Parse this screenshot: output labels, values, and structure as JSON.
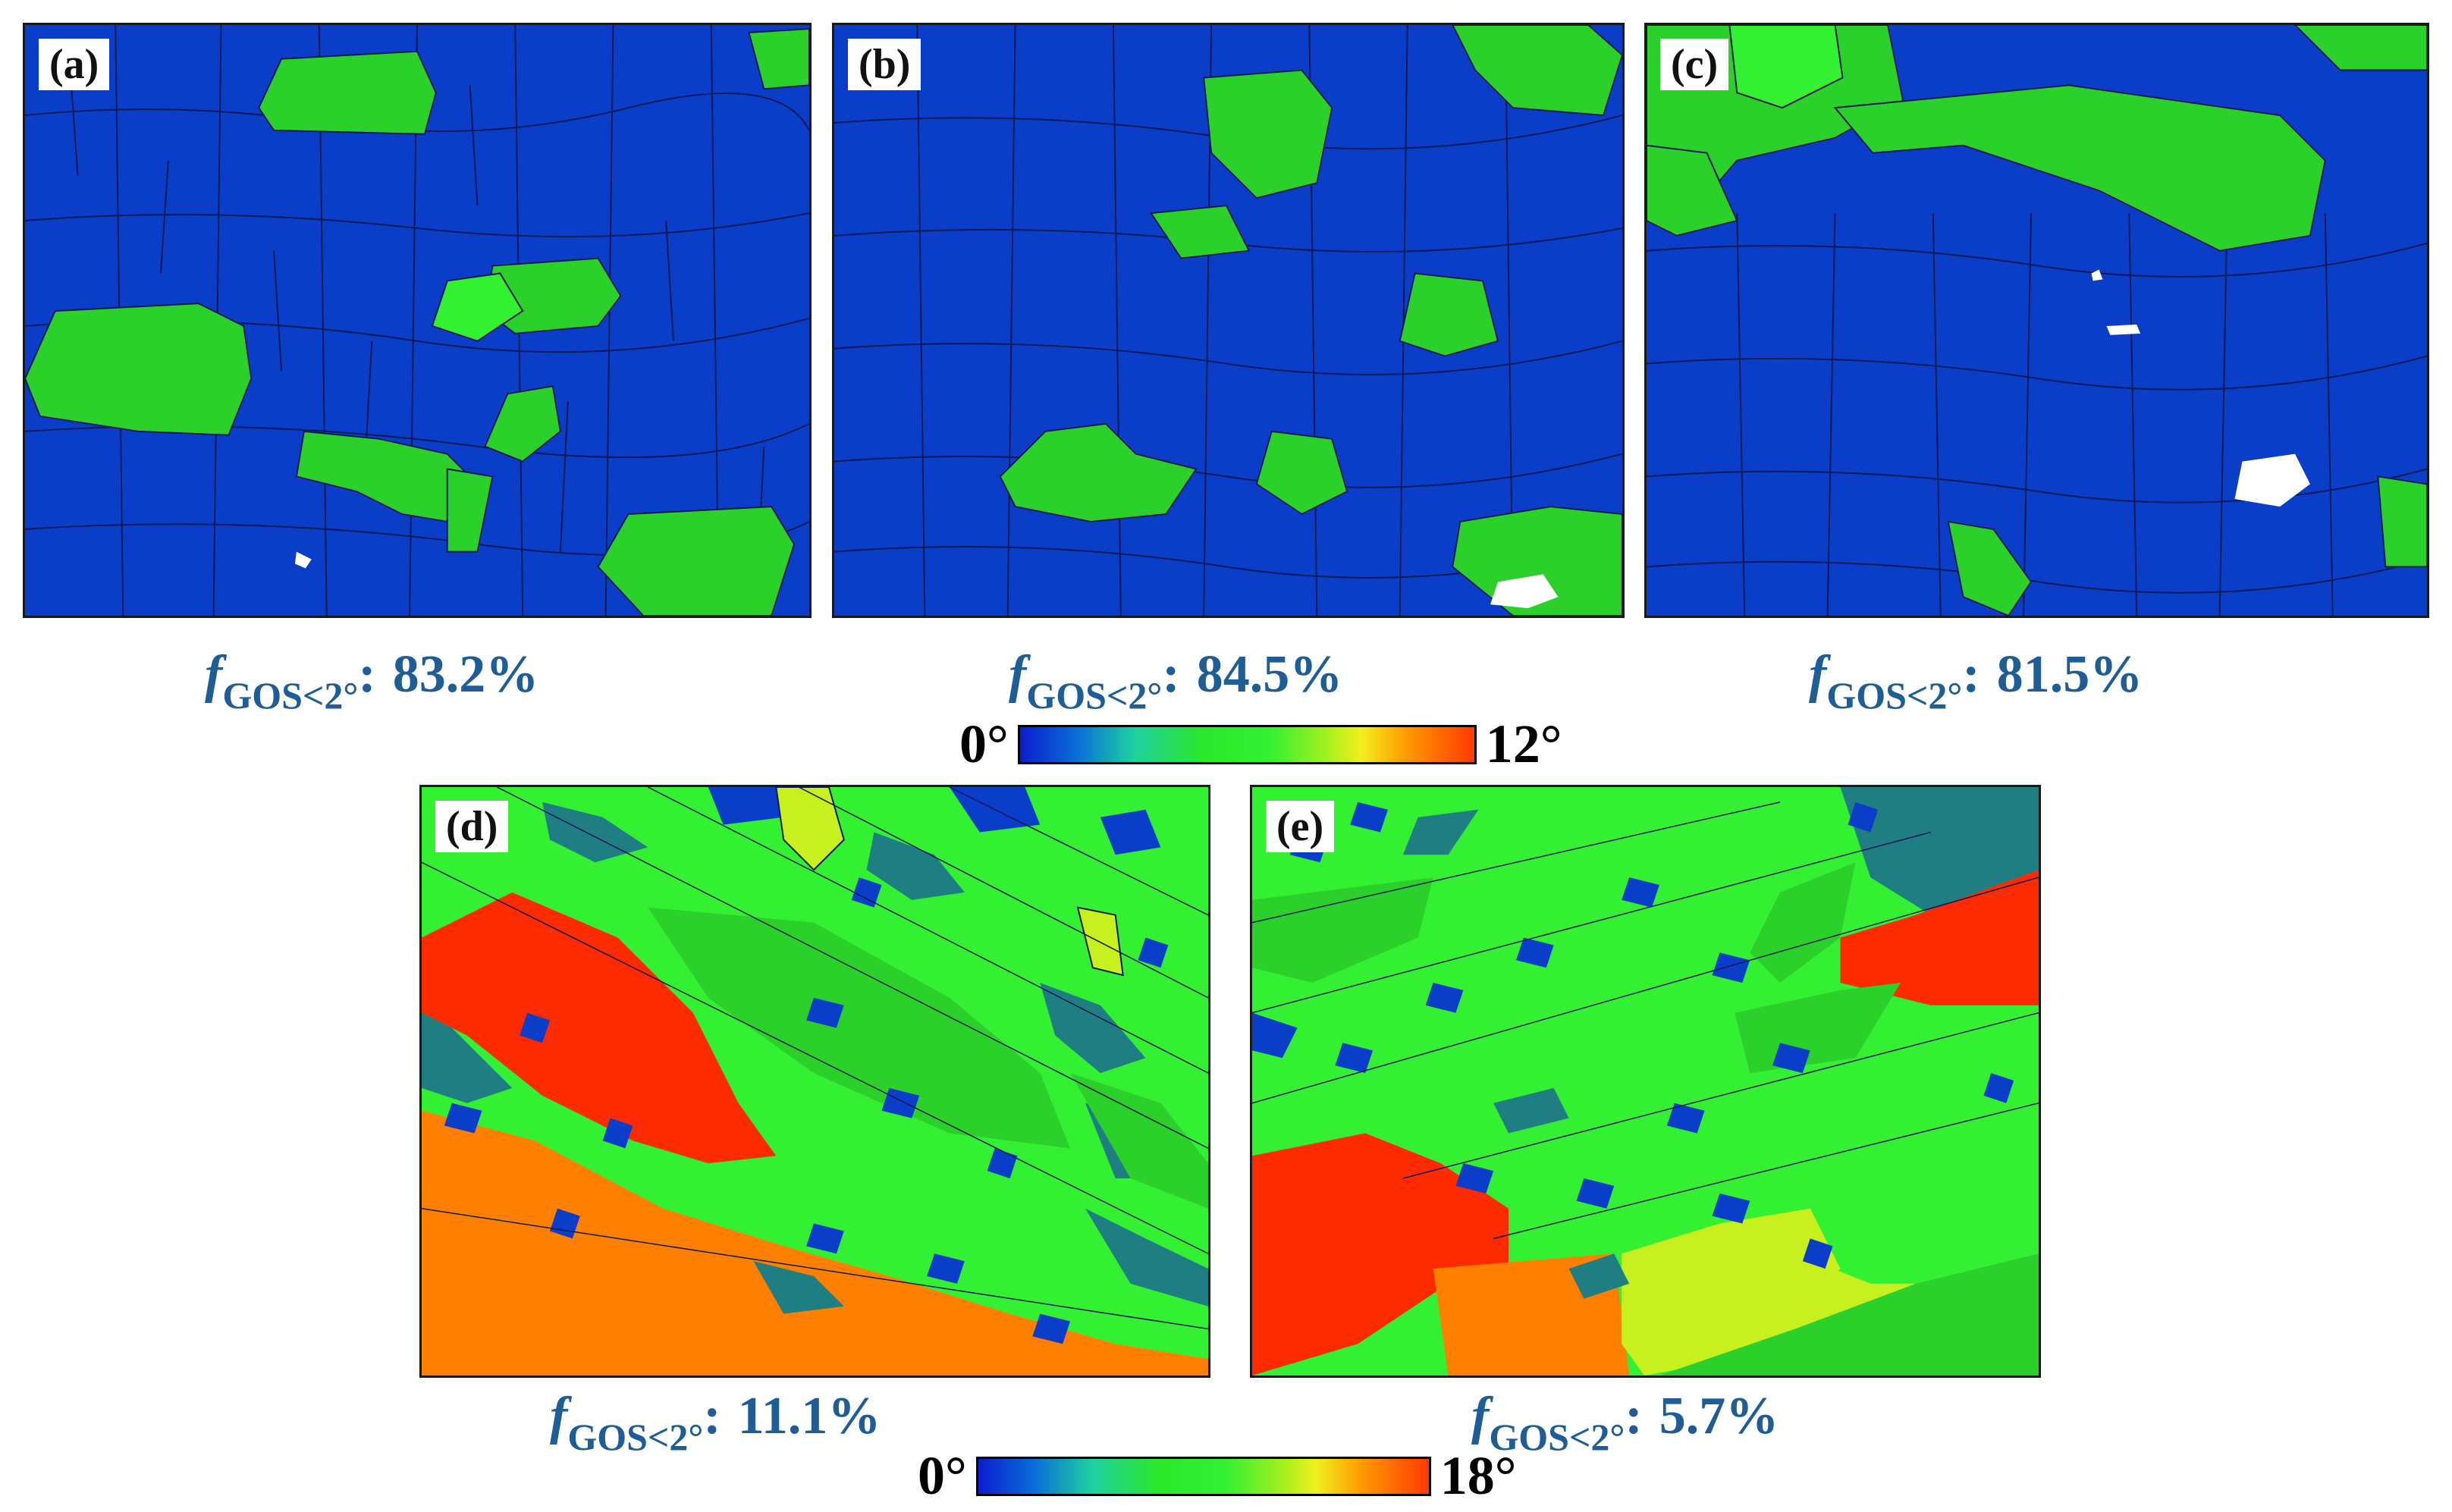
{
  "panels": [
    {
      "label": "(a)",
      "fgos_label": "f",
      "fgos_sub": "GOS<2°",
      "sep": ":",
      "value": "83.2%"
    },
    {
      "label": "(b)",
      "fgos_label": "f",
      "fgos_sub": "GOS<2°",
      "sep": ":",
      "value": "84.5%"
    },
    {
      "label": "(c)",
      "fgos_label": "f",
      "fgos_sub": "GOS<2°",
      "sep": ":",
      "value": "81.5%"
    },
    {
      "label": "(d)",
      "fgos_label": "f",
      "fgos_sub": "GOS<2°",
      "sep": ":",
      "value": "11.1%"
    },
    {
      "label": "(e)",
      "fgos_label": "f",
      "fgos_sub": "GOS<2°",
      "sep": ":",
      "value": "5.7%"
    }
  ],
  "scales": [
    {
      "min": "0°",
      "max": "12°"
    },
    {
      "min": "0°",
      "max": "18°"
    }
  ],
  "colors": {
    "blue": "#0a3ec8",
    "green": "#2bd02b",
    "bright_green": "#33f033",
    "teal": "#1e7e82",
    "yellow_green": "#c8f01e",
    "orange": "#ff8000",
    "red": "#ff2a00",
    "caption": "#1f5d96"
  }
}
